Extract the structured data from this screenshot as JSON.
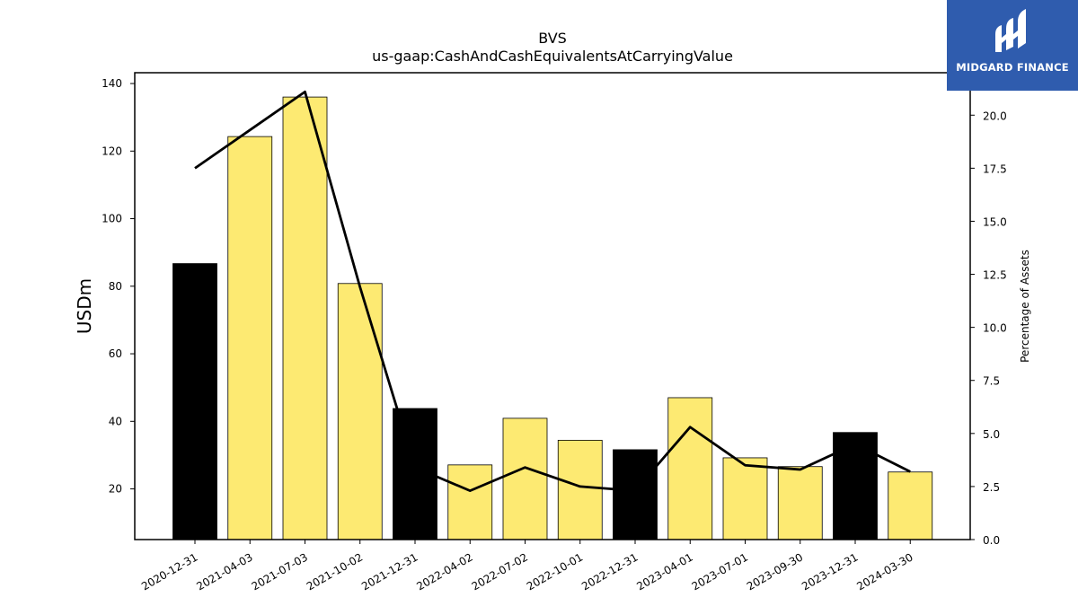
{
  "logo": {
    "text": "MIDGARD FINANCE",
    "icon": "midgard-logo-icon",
    "background": "#2f5cae"
  },
  "chart_data": {
    "type": "bar",
    "title": "BVS",
    "subtitle": "us-gaap:CashAndCashEquivalentsAtCarryingValue",
    "ylabel": "USDm",
    "y2label": "Percentage of Assets",
    "categories": [
      "2020-12-31",
      "2021-04-03",
      "2021-07-03",
      "2021-10-02",
      "2021-12-31",
      "2022-04-02",
      "2022-07-02",
      "2022-10-01",
      "2022-12-31",
      "2023-04-01",
      "2023-07-01",
      "2023-09-30",
      "2023-12-31",
      "2024-03-30"
    ],
    "values": [
      86.7,
      124.3,
      136.0,
      80.8,
      43.8,
      27.1,
      40.9,
      34.4,
      31.6,
      47.0,
      29.2,
      26.6,
      36.7,
      25.0
    ],
    "bar_colors": [
      "#000000",
      "#fdea72",
      "#fdea72",
      "#fdea72",
      "#000000",
      "#fdea72",
      "#fdea72",
      "#fdea72",
      "#000000",
      "#fdea72",
      "#fdea72",
      "#fdea72",
      "#000000",
      "#fdea72"
    ],
    "line_series": {
      "values": [
        17.5,
        19.3,
        21.1,
        11.9,
        3.4,
        2.3,
        3.4,
        2.5,
        2.3,
        5.3,
        3.5,
        3.3,
        4.5,
        3.2
      ],
      "color": "#000000"
    },
    "ylim": [
      5,
      143.2
    ],
    "y2lim": [
      0,
      22.0
    ],
    "yticks": [
      20,
      40,
      60,
      80,
      100,
      120,
      140
    ],
    "y2ticks": [
      "0.0",
      "2.5",
      "5.0",
      "7.5",
      "10.0",
      "12.5",
      "15.0",
      "17.5",
      "20.0"
    ],
    "grid": false,
    "legend": "none"
  }
}
